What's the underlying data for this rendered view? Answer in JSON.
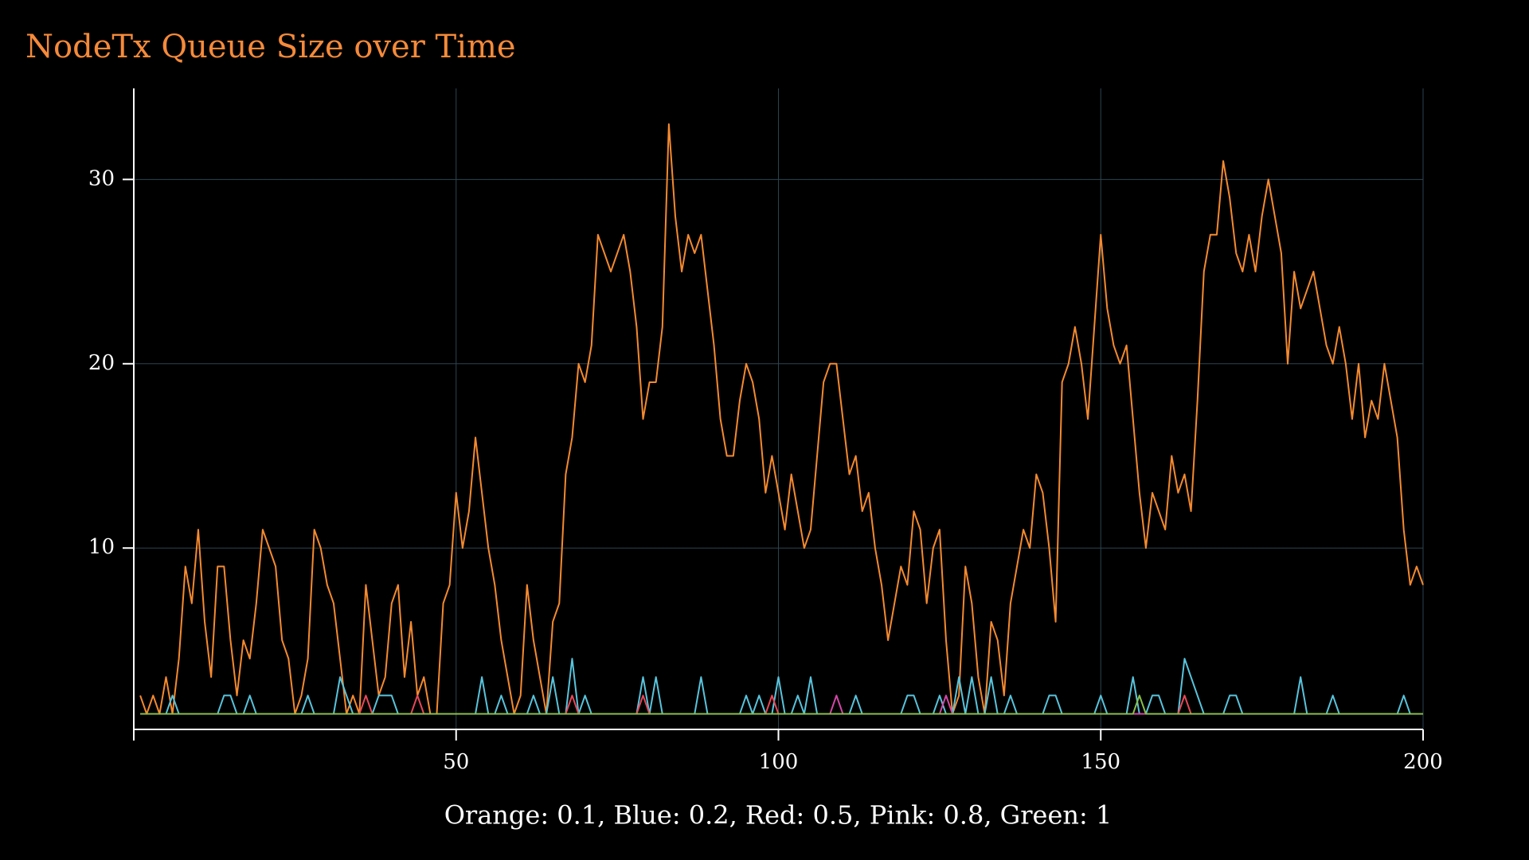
{
  "chart_data": {
    "type": "line",
    "title": "NodeTx Queue Size over Time",
    "x_label": "Orange: 0.1, Blue: 0.2, Red: 0.5, Pink: 0.8, Green: 1",
    "xlim": [
      0,
      200
    ],
    "ylim": [
      0.16,
      34.94
    ],
    "xticks": [
      50,
      100,
      150,
      200
    ],
    "yticks": [
      10,
      20,
      30
    ],
    "grid": true,
    "x": [
      1,
      2,
      3,
      4,
      5,
      6,
      7,
      8,
      9,
      10,
      11,
      12,
      13,
      14,
      15,
      16,
      17,
      18,
      19,
      20,
      21,
      22,
      23,
      24,
      25,
      26,
      27,
      28,
      29,
      30,
      31,
      32,
      33,
      34,
      35,
      36,
      37,
      38,
      39,
      40,
      41,
      42,
      43,
      44,
      45,
      46,
      47,
      48,
      49,
      50,
      51,
      52,
      53,
      54,
      55,
      56,
      57,
      58,
      59,
      60,
      61,
      62,
      63,
      64,
      65,
      66,
      67,
      68,
      69,
      70,
      71,
      72,
      73,
      74,
      75,
      76,
      77,
      78,
      79,
      80,
      81,
      82,
      83,
      84,
      85,
      86,
      87,
      88,
      89,
      90,
      91,
      92,
      93,
      94,
      95,
      96,
      97,
      98,
      99,
      100,
      101,
      102,
      103,
      104,
      105,
      106,
      107,
      108,
      109,
      110,
      111,
      112,
      113,
      114,
      115,
      116,
      117,
      118,
      119,
      120,
      121,
      122,
      123,
      124,
      125,
      126,
      127,
      128,
      129,
      130,
      131,
      132,
      133,
      134,
      135,
      136,
      137,
      138,
      139,
      140,
      141,
      142,
      143,
      144,
      145,
      146,
      147,
      148,
      149,
      150,
      151,
      152,
      153,
      154,
      155,
      156,
      157,
      158,
      159,
      160,
      161,
      162,
      163,
      164,
      165,
      166,
      167,
      168,
      169,
      170,
      171,
      172,
      173,
      174,
      175,
      176,
      177,
      178,
      179,
      180,
      181,
      182,
      183,
      184,
      185,
      186,
      187,
      188,
      189,
      190,
      191,
      192,
      193,
      194,
      195,
      196,
      197,
      198,
      199,
      200
    ],
    "series": [
      {
        "color": "#f58a2f",
        "values": [
          2,
          1,
          2,
          1,
          3,
          1,
          4,
          9,
          7,
          11,
          6,
          3,
          9,
          9,
          5,
          2,
          5,
          4,
          7,
          11,
          10,
          9,
          5,
          4,
          1,
          2,
          4,
          11,
          10,
          8,
          7,
          4,
          1,
          2,
          1,
          8,
          5,
          2,
          3,
          7,
          8,
          3,
          6,
          2,
          3,
          1,
          1,
          7,
          8,
          13,
          10,
          12,
          16,
          13,
          10,
          8,
          5,
          3,
          1,
          2,
          8,
          5,
          3,
          1,
          6,
          7,
          14,
          16,
          20,
          19,
          21,
          27,
          26,
          25,
          26,
          27,
          25,
          22,
          17,
          19,
          19,
          22,
          33,
          28,
          25,
          27,
          26,
          27,
          24,
          21,
          17,
          15,
          15,
          18,
          20,
          19,
          17,
          13,
          15,
          13,
          11,
          14,
          12,
          10,
          11,
          15,
          19,
          20,
          20,
          17,
          14,
          15,
          12,
          13,
          10,
          8,
          5,
          7,
          9,
          8,
          12,
          11,
          7,
          10,
          11,
          5,
          1,
          2,
          9,
          7,
          3,
          1,
          6,
          5,
          2,
          7,
          9,
          11,
          10,
          14,
          13,
          10,
          6,
          19,
          20,
          22,
          20,
          17,
          22,
          27,
          23,
          21,
          20,
          21,
          17,
          13,
          10,
          13,
          12,
          11,
          15,
          13,
          14,
          12,
          18,
          25,
          27,
          27,
          31,
          29,
          26,
          25,
          27,
          25,
          28,
          30,
          28,
          26,
          20,
          25,
          23,
          24,
          25,
          23,
          21,
          20,
          22,
          20,
          17,
          20,
          16,
          18,
          17,
          20,
          18,
          16,
          11,
          8,
          9,
          8
        ]
      },
      {
        "color": "#58c4dc",
        "values": [
          1,
          1,
          1,
          1,
          1,
          2,
          1,
          1,
          1,
          1,
          1,
          1,
          1,
          2,
          2,
          1,
          1,
          2,
          1,
          1,
          1,
          1,
          1,
          1,
          1,
          1,
          2,
          1,
          1,
          1,
          1,
          3,
          2,
          1,
          1,
          1,
          1,
          2,
          2,
          2,
          1,
          1,
          1,
          1,
          1,
          1,
          1,
          1,
          1,
          1,
          1,
          1,
          1,
          3,
          1,
          1,
          2,
          1,
          1,
          1,
          1,
          2,
          1,
          1,
          3,
          1,
          1,
          4,
          1,
          2,
          1,
          1,
          1,
          1,
          1,
          1,
          1,
          1,
          3,
          1,
          3,
          1,
          1,
          1,
          1,
          1,
          1,
          3,
          1,
          1,
          1,
          1,
          1,
          1,
          2,
          1,
          2,
          1,
          1,
          3,
          1,
          1,
          2,
          1,
          3,
          1,
          1,
          1,
          1,
          1,
          1,
          2,
          1,
          1,
          1,
          1,
          1,
          1,
          1,
          2,
          2,
          1,
          1,
          1,
          2,
          1,
          1,
          3,
          1,
          3,
          1,
          1,
          3,
          1,
          1,
          2,
          1,
          1,
          1,
          1,
          1,
          2,
          2,
          1,
          1,
          1,
          1,
          1,
          1,
          2,
          1,
          1,
          1,
          1,
          3,
          1,
          1,
          2,
          2,
          1,
          1,
          1,
          4,
          3,
          2,
          1,
          1,
          1,
          1,
          2,
          2,
          1,
          1,
          1,
          1,
          1,
          1,
          1,
          1,
          1,
          3,
          1,
          1,
          1,
          1,
          2,
          1,
          1,
          1,
          1,
          1,
          1,
          1,
          1,
          1,
          1,
          2,
          1,
          1,
          1
        ]
      },
      {
        "color": "#e8485a",
        "values": [
          1,
          1,
          1,
          1,
          1,
          1,
          1,
          1,
          1,
          1,
          1,
          1,
          1,
          1,
          1,
          1,
          1,
          1,
          1,
          1,
          1,
          1,
          1,
          1,
          1,
          1,
          1,
          1,
          1,
          1,
          1,
          1,
          1,
          1,
          1,
          2,
          1,
          1,
          1,
          1,
          1,
          1,
          1,
          2,
          1,
          1,
          1,
          1,
          1,
          1,
          1,
          1,
          1,
          1,
          1,
          1,
          1,
          1,
          1,
          1,
          1,
          1,
          1,
          1,
          1,
          1,
          1,
          2,
          1,
          1,
          1,
          1,
          1,
          1,
          1,
          1,
          1,
          1,
          2,
          1,
          1,
          1,
          1,
          1,
          1,
          1,
          1,
          1,
          1,
          1,
          1,
          1,
          1,
          1,
          1,
          1,
          1,
          1,
          2,
          1,
          1,
          1,
          1,
          1,
          1,
          1,
          1,
          1,
          1,
          1,
          1,
          1,
          1,
          1,
          1,
          1,
          1,
          1,
          1,
          1,
          1,
          1,
          1,
          1,
          1,
          1,
          1,
          1,
          1,
          1,
          1,
          1,
          1,
          1,
          1,
          1,
          1,
          1,
          1,
          1,
          1,
          1,
          1,
          1,
          1,
          1,
          1,
          1,
          1,
          1,
          1,
          1,
          1,
          1,
          1,
          1,
          1,
          1,
          1,
          1,
          1,
          1,
          2,
          1,
          1,
          1,
          1,
          1,
          1,
          1,
          1,
          1,
          1,
          1,
          1,
          1,
          1,
          1,
          1,
          1,
          1,
          1,
          1,
          1,
          1,
          1,
          1,
          1,
          1,
          1,
          1,
          1,
          1,
          1,
          1,
          1,
          1,
          1,
          1,
          1
        ]
      },
      {
        "color": "#d447a8",
        "values": [
          1,
          1,
          1,
          1,
          1,
          1,
          1,
          1,
          1,
          1,
          1,
          1,
          1,
          1,
          1,
          1,
          1,
          1,
          1,
          1,
          1,
          1,
          1,
          1,
          1,
          1,
          1,
          1,
          1,
          1,
          1,
          1,
          1,
          1,
          1,
          1,
          1,
          1,
          1,
          1,
          1,
          1,
          1,
          1,
          1,
          1,
          1,
          1,
          1,
          1,
          1,
          1,
          1,
          1,
          1,
          1,
          1,
          1,
          1,
          1,
          1,
          1,
          1,
          1,
          1,
          1,
          1,
          1,
          1,
          1,
          1,
          1,
          1,
          1,
          1,
          1,
          1,
          1,
          1,
          1,
          1,
          1,
          1,
          1,
          1,
          1,
          1,
          1,
          1,
          1,
          1,
          1,
          1,
          1,
          1,
          1,
          1,
          1,
          1,
          1,
          1,
          1,
          1,
          1,
          1,
          1,
          1,
          1,
          2,
          1,
          1,
          1,
          1,
          1,
          1,
          1,
          1,
          1,
          1,
          1,
          1,
          1,
          1,
          1,
          1,
          2,
          1,
          1,
          1,
          1,
          1,
          1,
          1,
          1,
          1,
          1,
          1,
          1,
          1,
          1,
          1,
          1,
          1,
          1,
          1,
          1,
          1,
          1,
          1,
          1,
          1,
          1,
          1,
          1,
          1,
          1,
          1,
          1,
          1,
          1,
          1,
          1,
          1,
          1,
          1,
          1,
          1,
          1,
          1,
          1,
          1,
          1,
          1,
          1,
          1,
          1,
          1,
          1,
          1,
          1,
          1,
          1,
          1,
          1,
          1,
          1,
          1,
          1,
          1,
          1,
          1,
          1,
          1,
          1,
          1,
          1,
          1,
          1,
          1,
          1
        ]
      },
      {
        "color": "#8ac04a",
        "values": [
          1,
          1,
          1,
          1,
          1,
          1,
          1,
          1,
          1,
          1,
          1,
          1,
          1,
          1,
          1,
          1,
          1,
          1,
          1,
          1,
          1,
          1,
          1,
          1,
          1,
          1,
          1,
          1,
          1,
          1,
          1,
          1,
          1,
          1,
          1,
          1,
          1,
          1,
          1,
          1,
          1,
          1,
          1,
          1,
          1,
          1,
          1,
          1,
          1,
          1,
          1,
          1,
          1,
          1,
          1,
          1,
          1,
          1,
          1,
          1,
          1,
          1,
          1,
          1,
          1,
          1,
          1,
          1,
          1,
          1,
          1,
          1,
          1,
          1,
          1,
          1,
          1,
          1,
          1,
          1,
          1,
          1,
          1,
          1,
          1,
          1,
          1,
          1,
          1,
          1,
          1,
          1,
          1,
          1,
          1,
          1,
          1,
          1,
          1,
          1,
          1,
          1,
          1,
          1,
          1,
          1,
          1,
          1,
          1,
          1,
          1,
          1,
          1,
          1,
          1,
          1,
          1,
          1,
          1,
          1,
          1,
          1,
          1,
          1,
          1,
          1,
          1,
          1,
          1,
          1,
          1,
          1,
          1,
          1,
          1,
          1,
          1,
          1,
          1,
          1,
          1,
          1,
          1,
          1,
          1,
          1,
          1,
          1,
          1,
          1,
          1,
          1,
          1,
          1,
          1,
          2,
          1,
          1,
          1,
          1,
          1,
          1,
          1,
          1,
          1,
          1,
          1,
          1,
          1,
          1,
          1,
          1,
          1,
          1,
          1,
          1,
          1,
          1,
          1,
          1,
          1,
          1,
          1,
          1,
          1,
          1,
          1,
          1,
          1,
          1,
          1,
          1,
          1,
          1,
          1,
          1,
          1,
          1,
          1,
          1
        ]
      }
    ]
  }
}
